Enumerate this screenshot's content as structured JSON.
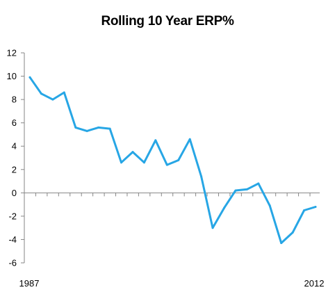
{
  "chart_data": {
    "type": "line",
    "title": "Rolling 10 Year ERP%",
    "xlabel": "",
    "ylabel": "",
    "x": [
      1987,
      1988,
      1989,
      1990,
      1991,
      1992,
      1993,
      1994,
      1995,
      1996,
      1997,
      1998,
      1999,
      2000,
      2001,
      2002,
      2003,
      2004,
      2005,
      2006,
      2007,
      2008,
      2009,
      2010,
      2011,
      2012
    ],
    "x_tick_labels": [
      "1987",
      "2012"
    ],
    "series": [
      {
        "values": [
          9.9,
          8.5,
          8.0,
          8.6,
          5.6,
          5.3,
          5.6,
          5.5,
          2.6,
          3.5,
          2.6,
          4.5,
          2.4,
          2.8,
          4.6,
          1.4,
          -3.0,
          -1.3,
          0.2,
          0.3,
          0.8,
          -1.1,
          -4.3,
          -3.4,
          -1.5,
          -1.2
        ],
        "color": "#27A6E5"
      }
    ],
    "ylim": [
      -6,
      12
    ],
    "y_ticks": [
      12,
      10,
      8,
      6,
      4,
      2,
      0,
      -2,
      -4,
      -6
    ],
    "grid": false,
    "legend": "none"
  }
}
